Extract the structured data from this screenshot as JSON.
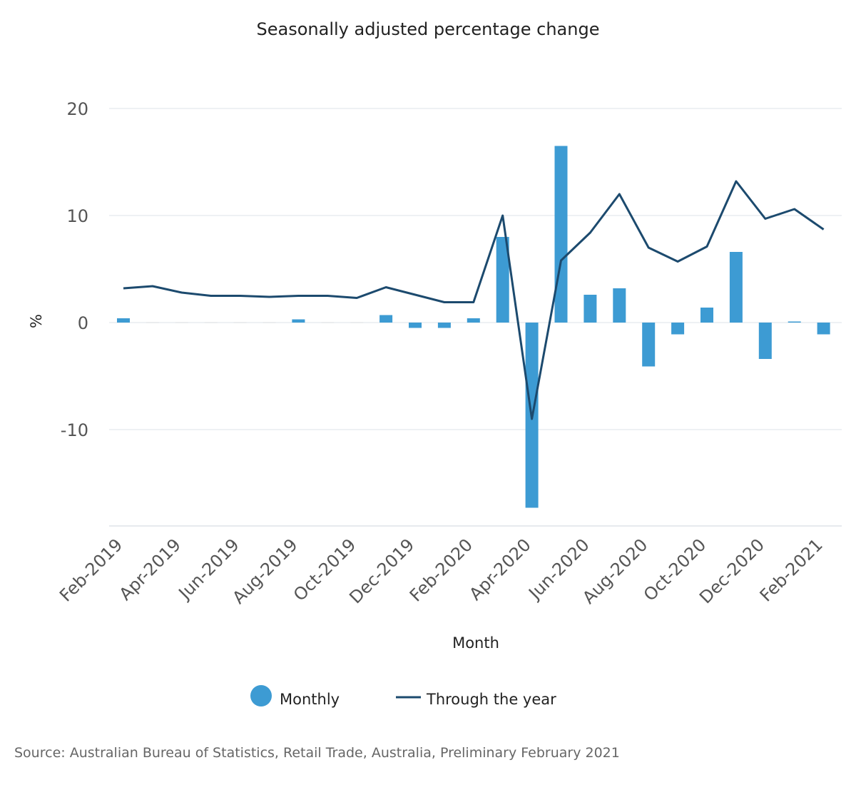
{
  "chart_data": {
    "type": "bar",
    "title": "Seasonally adjusted percentage change",
    "xlabel": "Month",
    "ylabel": "%",
    "ylim": [
      -19,
      20
    ],
    "yticks": [
      20,
      10,
      0,
      -10
    ],
    "grid": true,
    "legend_position": "bottom",
    "categories": [
      "Feb-2019",
      "Mar-2019",
      "Apr-2019",
      "May-2019",
      "Jun-2019",
      "Jul-2019",
      "Aug-2019",
      "Sep-2019",
      "Oct-2019",
      "Nov-2019",
      "Dec-2019",
      "Jan-2020",
      "Feb-2020",
      "Mar-2020",
      "Apr-2020",
      "May-2020",
      "Jun-2020",
      "Jul-2020",
      "Aug-2020",
      "Sep-2020",
      "Oct-2020",
      "Nov-2020",
      "Dec-2020",
      "Jan-2021",
      "Feb-2021"
    ],
    "tick_labels": [
      "Feb-2019",
      "Apr-2019",
      "Jun-2019",
      "Aug-2019",
      "Oct-2019",
      "Dec-2019",
      "Feb-2020",
      "Apr-2020",
      "Jun-2020",
      "Aug-2020",
      "Oct-2020",
      "Dec-2020",
      "Feb-2021"
    ],
    "series": [
      {
        "name": "Monthly",
        "type": "bar",
        "color": "#3d9bd3",
        "values": [
          0.4,
          0.0,
          0.0,
          0.0,
          0.0,
          0.0,
          0.3,
          0.0,
          0.0,
          0.7,
          -0.5,
          -0.5,
          0.4,
          8.0,
          -17.3,
          16.5,
          2.6,
          3.2,
          -4.1,
          -1.1,
          1.4,
          6.6,
          -3.4,
          0.1,
          -1.1
        ]
      },
      {
        "name": "Through the year",
        "type": "line",
        "color": "#1c4a6e",
        "values": [
          3.2,
          3.4,
          2.8,
          2.5,
          2.5,
          2.4,
          2.5,
          2.5,
          2.3,
          3.3,
          2.6,
          1.9,
          1.9,
          10.0,
          -9.0,
          5.8,
          8.4,
          12.0,
          7.0,
          5.7,
          7.1,
          13.2,
          9.7,
          10.6,
          8.7
        ]
      }
    ],
    "source": "Source: Australian Bureau of Statistics, Retail Trade, Australia, Preliminary February 2021"
  }
}
